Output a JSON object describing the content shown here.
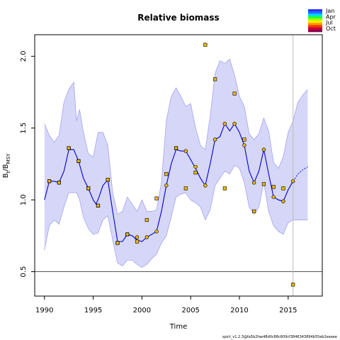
{
  "chart_data": {
    "type": "line",
    "title": "Relative biomass",
    "xlabel": "Time",
    "ylabel_main": "B",
    "ylabel_sub1": "t",
    "ylabel_mid": "/B",
    "ylabel_sub2": "MSY",
    "xlim": [
      1989.0,
      2018.5
    ],
    "ylim": [
      0.33,
      2.15
    ],
    "xticks": [
      1990,
      1995,
      2000,
      2005,
      2010,
      2015
    ],
    "yticks": [
      0.5,
      1.0,
      1.5,
      2.0
    ],
    "xtick_labels": [
      "1990",
      "1995",
      "2000",
      "2005",
      "2010",
      "2015"
    ],
    "ytick_labels": [
      "0.5",
      "1.0",
      "1.5",
      "2.0"
    ],
    "reference_line_y": 0.5,
    "vertical_line_x": 2015.5,
    "legend": {
      "position": "top-right",
      "labels": [
        "Jan",
        "Apr",
        "Jul",
        "Oct"
      ],
      "colors": [
        "#3030ff",
        "#1f6fff",
        "#00d8ff",
        "#18ff40",
        "#a0ff00",
        "#ffee00",
        "#ff9900",
        "#ff3300",
        "#cc0033",
        "#8a0050"
      ]
    },
    "footer": "spict_v1.2.3@fa5b2fae48d0c88c609cf3846343894b55eb2eeaee",
    "colors": {
      "line": "#0000cc",
      "band": "#d6d6f8",
      "band_edge": "#9a9af0",
      "obs_fill": "#e8b800",
      "ref": "#555555",
      "vline": "#bbbbbb"
    },
    "series": [
      {
        "name": "estimate",
        "x": [
          1990.0,
          1990.5,
          1991.0,
          1991.5,
          1992.0,
          1992.5,
          1993.0,
          1993.5,
          1994.0,
          1994.5,
          1995.0,
          1995.3,
          1995.6,
          1996.0,
          1996.5,
          1997.0,
          1997.5,
          1998.0,
          1998.5,
          1999.0,
          1999.5,
          2000.0,
          2000.5,
          2001.0,
          2001.5,
          2002.0,
          2002.5,
          2003.0,
          2003.5,
          2004.0,
          2004.5,
          2005.0,
          2005.5,
          2006.0,
          2006.5,
          2007.0,
          2007.5,
          2008.0,
          2008.5,
          2009.0,
          2009.5,
          2010.0,
          2010.5,
          2011.0,
          2011.5,
          2012.0,
          2012.5,
          2013.0,
          2013.5,
          2014.0,
          2014.5,
          2015.0,
          2015.5
        ],
        "y": [
          1.0,
          1.13,
          1.13,
          1.12,
          1.2,
          1.35,
          1.35,
          1.27,
          1.15,
          1.08,
          1.0,
          0.97,
          1.02,
          1.1,
          1.14,
          0.92,
          0.71,
          0.71,
          0.76,
          0.75,
          0.72,
          0.71,
          0.74,
          0.76,
          0.78,
          0.92,
          1.1,
          1.25,
          1.35,
          1.34,
          1.34,
          1.28,
          1.22,
          1.15,
          1.1,
          1.25,
          1.42,
          1.44,
          1.53,
          1.48,
          1.53,
          1.47,
          1.38,
          1.2,
          1.12,
          1.2,
          1.35,
          1.18,
          1.02,
          1.0,
          0.99,
          1.07,
          1.13
        ]
      },
      {
        "name": "prediction",
        "x": [
          2015.5,
          2016.0,
          2016.5,
          2017.0
        ],
        "y": [
          1.13,
          1.18,
          1.21,
          1.23
        ]
      }
    ],
    "band": {
      "x": [
        1990.0,
        1990.5,
        1991.0,
        1991.5,
        1992.0,
        1992.5,
        1993.0,
        1993.3,
        1993.6,
        1994.0,
        1994.5,
        1995.0,
        1995.5,
        1996.0,
        1996.5,
        1997.0,
        1997.5,
        1998.0,
        1998.5,
        1999.0,
        1999.5,
        2000.0,
        2000.5,
        2001.0,
        2001.5,
        2002.0,
        2002.5,
        2003.0,
        2003.5,
        2004.0,
        2004.5,
        2005.0,
        2005.5,
        2006.0,
        2006.5,
        2007.0,
        2007.5,
        2008.0,
        2008.5,
        2009.0,
        2009.5,
        2010.0,
        2010.5,
        2011.0,
        2011.5,
        2012.0,
        2012.5,
        2013.0,
        2013.5,
        2014.0,
        2014.5,
        2015.0,
        2015.5,
        2016.0,
        2016.5,
        2017.0
      ],
      "upper": [
        1.53,
        1.45,
        1.4,
        1.45,
        1.68,
        1.77,
        1.82,
        1.55,
        1.63,
        1.47,
        1.32,
        1.3,
        1.47,
        1.47,
        1.38,
        1.05,
        0.9,
        0.92,
        1.02,
        0.97,
        0.92,
        1.0,
        0.92,
        0.92,
        0.93,
        1.12,
        1.55,
        1.72,
        1.78,
        1.72,
        1.65,
        1.67,
        1.5,
        1.38,
        1.35,
        1.58,
        1.88,
        1.97,
        1.95,
        1.98,
        1.87,
        1.72,
        1.65,
        1.46,
        1.42,
        1.46,
        1.57,
        1.48,
        1.26,
        1.22,
        1.3,
        1.47,
        1.55,
        1.68,
        1.73,
        1.77
      ],
      "lower": [
        0.65,
        0.82,
        0.86,
        0.83,
        0.95,
        1.05,
        1.05,
        1.05,
        1.0,
        0.88,
        0.8,
        0.76,
        0.77,
        0.86,
        0.89,
        0.72,
        0.56,
        0.54,
        0.58,
        0.58,
        0.55,
        0.53,
        0.55,
        0.59,
        0.62,
        0.7,
        0.75,
        0.88,
        1.02,
        1.04,
        1.05,
        1.0,
        0.98,
        0.95,
        0.86,
        0.93,
        1.1,
        1.15,
        1.2,
        1.18,
        1.24,
        1.22,
        1.12,
        0.95,
        0.9,
        0.95,
        1.12,
        0.92,
        0.82,
        0.78,
        0.76,
        0.84,
        0.86,
        0.86,
        0.86,
        0.86
      ]
    },
    "observations": {
      "x": [
        1990.5,
        1991.5,
        1992.5,
        1993.5,
        1994.5,
        1995.5,
        1996.5,
        1997.5,
        1998.5,
        1999.5,
        2000.5,
        2001.5,
        2002.5,
        2003.5,
        2004.5,
        2005.5,
        2006.5,
        2007.5,
        2008.5,
        2009.5,
        2010.5,
        2011.5,
        2012.5,
        2013.5,
        2014.5,
        2015.5
      ],
      "y": [
        1.13,
        1.12,
        1.36,
        1.27,
        1.08,
        0.96,
        1.14,
        0.7,
        0.76,
        0.71,
        0.86,
        1.01,
        1.18,
        1.36,
        1.08,
        1.19,
        2.08,
        1.84,
        1.08,
        1.74,
        1.42,
        0.92,
        1.11,
        1.09,
        1.08,
        0.41
      ],
      "ring_y": [
        1.13,
        1.12,
        1.36,
        1.27,
        1.08,
        0.96,
        1.14,
        0.7,
        0.76,
        0.74,
        0.74,
        0.78,
        1.1,
        1.36,
        1.34,
        1.23,
        1.1,
        1.42,
        1.53,
        1.53,
        1.38,
        1.12,
        1.35,
        1.02,
        0.99,
        1.13
      ]
    }
  }
}
